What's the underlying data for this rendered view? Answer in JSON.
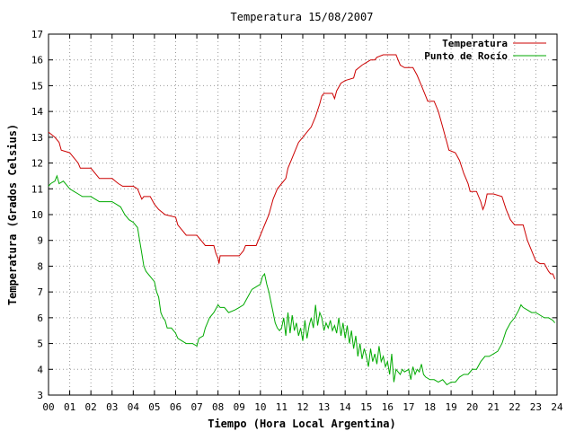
{
  "chart_data": {
    "type": "line",
    "title": "Temperatura 15/08/2007",
    "xlabel": "Tiempo (Hora Local Argentina)",
    "ylabel": "Temperatura (Grados Celsius)",
    "xlim": [
      0,
      24
    ],
    "ylim": [
      3,
      17
    ],
    "x_ticks": [
      "00",
      "01",
      "02",
      "03",
      "04",
      "05",
      "06",
      "07",
      "08",
      "09",
      "10",
      "11",
      "12",
      "13",
      "14",
      "15",
      "16",
      "17",
      "18",
      "19",
      "20",
      "21",
      "22",
      "23",
      "24"
    ],
    "y_ticks": [
      3,
      4,
      5,
      6,
      7,
      8,
      9,
      10,
      11,
      12,
      13,
      14,
      15,
      16,
      17
    ],
    "grid": true,
    "legend_position": "top-right",
    "series": [
      {
        "name": "Temperatura",
        "color": "#cc0000",
        "points": [
          [
            0.0,
            13.2
          ],
          [
            0.3,
            13.0
          ],
          [
            0.5,
            12.8
          ],
          [
            0.6,
            12.5
          ],
          [
            1.0,
            12.4
          ],
          [
            1.2,
            12.2
          ],
          [
            1.4,
            12.0
          ],
          [
            1.5,
            11.8
          ],
          [
            2.0,
            11.8
          ],
          [
            2.2,
            11.6
          ],
          [
            2.4,
            11.4
          ],
          [
            3.0,
            11.4
          ],
          [
            3.3,
            11.2
          ],
          [
            3.5,
            11.1
          ],
          [
            4.0,
            11.1
          ],
          [
            4.2,
            11.0
          ],
          [
            4.4,
            10.6
          ],
          [
            4.5,
            10.7
          ],
          [
            4.8,
            10.7
          ],
          [
            5.0,
            10.4
          ],
          [
            5.2,
            10.2
          ],
          [
            5.5,
            10.0
          ],
          [
            6.0,
            9.9
          ],
          [
            6.1,
            9.6
          ],
          [
            6.3,
            9.4
          ],
          [
            6.5,
            9.2
          ],
          [
            6.8,
            9.2
          ],
          [
            7.0,
            9.2
          ],
          [
            7.2,
            9.0
          ],
          [
            7.4,
            8.8
          ],
          [
            7.8,
            8.8
          ],
          [
            7.9,
            8.5
          ],
          [
            8.0,
            8.3
          ],
          [
            8.05,
            8.1
          ],
          [
            8.1,
            8.4
          ],
          [
            8.5,
            8.4
          ],
          [
            9.0,
            8.4
          ],
          [
            9.2,
            8.6
          ],
          [
            9.3,
            8.8
          ],
          [
            9.8,
            8.8
          ],
          [
            10.0,
            9.2
          ],
          [
            10.2,
            9.6
          ],
          [
            10.4,
            10.0
          ],
          [
            10.6,
            10.6
          ],
          [
            10.8,
            11.0
          ],
          [
            11.0,
            11.2
          ],
          [
            11.2,
            11.4
          ],
          [
            11.3,
            11.8
          ],
          [
            11.4,
            12.0
          ],
          [
            11.6,
            12.4
          ],
          [
            11.8,
            12.8
          ],
          [
            12.0,
            13.0
          ],
          [
            12.2,
            13.2
          ],
          [
            12.4,
            13.4
          ],
          [
            12.6,
            13.8
          ],
          [
            12.8,
            14.3
          ],
          [
            12.9,
            14.6
          ],
          [
            13.0,
            14.7
          ],
          [
            13.4,
            14.7
          ],
          [
            13.5,
            14.5
          ],
          [
            13.6,
            14.8
          ],
          [
            13.8,
            15.1
          ],
          [
            14.0,
            15.2
          ],
          [
            14.4,
            15.3
          ],
          [
            14.5,
            15.6
          ],
          [
            14.8,
            15.8
          ],
          [
            15.0,
            15.9
          ],
          [
            15.2,
            16.0
          ],
          [
            15.4,
            16.0
          ],
          [
            15.5,
            16.1
          ],
          [
            15.8,
            16.2
          ],
          [
            16.0,
            16.2
          ],
          [
            16.4,
            16.2
          ],
          [
            16.5,
            16.0
          ],
          [
            16.6,
            15.8
          ],
          [
            16.8,
            15.7
          ],
          [
            17.2,
            15.7
          ],
          [
            17.4,
            15.4
          ],
          [
            17.6,
            15.0
          ],
          [
            17.8,
            14.6
          ],
          [
            17.9,
            14.4
          ],
          [
            18.2,
            14.4
          ],
          [
            18.4,
            14.0
          ],
          [
            18.6,
            13.4
          ],
          [
            18.8,
            12.8
          ],
          [
            18.9,
            12.5
          ],
          [
            19.2,
            12.4
          ],
          [
            19.4,
            12.1
          ],
          [
            19.6,
            11.6
          ],
          [
            19.8,
            11.2
          ],
          [
            19.9,
            10.9
          ],
          [
            20.2,
            10.9
          ],
          [
            20.4,
            10.5
          ],
          [
            20.5,
            10.2
          ],
          [
            20.6,
            10.4
          ],
          [
            20.7,
            10.8
          ],
          [
            21.0,
            10.8
          ],
          [
            21.4,
            10.7
          ],
          [
            21.6,
            10.2
          ],
          [
            21.8,
            9.8
          ],
          [
            22.0,
            9.6
          ],
          [
            22.4,
            9.6
          ],
          [
            22.6,
            9.0
          ],
          [
            22.8,
            8.6
          ],
          [
            23.0,
            8.2
          ],
          [
            23.2,
            8.1
          ],
          [
            23.4,
            8.1
          ],
          [
            23.6,
            7.8
          ],
          [
            23.7,
            7.7
          ],
          [
            23.8,
            7.7
          ],
          [
            23.9,
            7.5
          ]
        ]
      },
      {
        "name": "Punto de Rocío",
        "color": "#00aa00",
        "points": [
          [
            0.0,
            11.1
          ],
          [
            0.1,
            11.2
          ],
          [
            0.3,
            11.3
          ],
          [
            0.4,
            11.5
          ],
          [
            0.5,
            11.2
          ],
          [
            0.7,
            11.3
          ],
          [
            1.0,
            11.0
          ],
          [
            1.2,
            10.9
          ],
          [
            1.4,
            10.8
          ],
          [
            1.6,
            10.7
          ],
          [
            2.0,
            10.7
          ],
          [
            2.2,
            10.6
          ],
          [
            2.4,
            10.5
          ],
          [
            3.0,
            10.5
          ],
          [
            3.4,
            10.3
          ],
          [
            3.6,
            10.0
          ],
          [
            3.8,
            9.8
          ],
          [
            4.0,
            9.7
          ],
          [
            4.2,
            9.5
          ],
          [
            4.3,
            9.0
          ],
          [
            4.4,
            8.5
          ],
          [
            4.5,
            8.0
          ],
          [
            4.6,
            7.8
          ],
          [
            4.8,
            7.6
          ],
          [
            5.0,
            7.4
          ],
          [
            5.1,
            7.0
          ],
          [
            5.2,
            6.8
          ],
          [
            5.3,
            6.2
          ],
          [
            5.4,
            6.0
          ],
          [
            5.5,
            5.9
          ],
          [
            5.6,
            5.6
          ],
          [
            5.8,
            5.6
          ],
          [
            6.0,
            5.4
          ],
          [
            6.1,
            5.2
          ],
          [
            6.3,
            5.1
          ],
          [
            6.5,
            5.0
          ],
          [
            6.8,
            5.0
          ],
          [
            7.0,
            4.9
          ],
          [
            7.1,
            5.2
          ],
          [
            7.3,
            5.3
          ],
          [
            7.4,
            5.6
          ],
          [
            7.5,
            5.8
          ],
          [
            7.6,
            6.0
          ],
          [
            7.8,
            6.2
          ],
          [
            8.0,
            6.5
          ],
          [
            8.1,
            6.4
          ],
          [
            8.3,
            6.4
          ],
          [
            8.5,
            6.2
          ],
          [
            8.8,
            6.3
          ],
          [
            9.0,
            6.4
          ],
          [
            9.2,
            6.5
          ],
          [
            9.4,
            6.8
          ],
          [
            9.6,
            7.1
          ],
          [
            9.8,
            7.2
          ],
          [
            10.0,
            7.3
          ],
          [
            10.1,
            7.6
          ],
          [
            10.2,
            7.7
          ],
          [
            10.3,
            7.3
          ],
          [
            10.4,
            7.0
          ],
          [
            10.5,
            6.6
          ],
          [
            10.6,
            6.2
          ],
          [
            10.7,
            5.8
          ],
          [
            10.8,
            5.6
          ],
          [
            10.9,
            5.5
          ],
          [
            11.0,
            5.6
          ],
          [
            11.1,
            6.0
          ],
          [
            11.2,
            5.3
          ],
          [
            11.3,
            6.2
          ],
          [
            11.4,
            5.4
          ],
          [
            11.5,
            6.1
          ],
          [
            11.6,
            5.5
          ],
          [
            11.7,
            5.8
          ],
          [
            11.8,
            5.3
          ],
          [
            11.9,
            5.6
          ],
          [
            12.0,
            5.1
          ],
          [
            12.1,
            5.9
          ],
          [
            12.2,
            5.2
          ],
          [
            12.3,
            5.7
          ],
          [
            12.4,
            6.0
          ],
          [
            12.5,
            5.6
          ],
          [
            12.6,
            6.5
          ],
          [
            12.7,
            5.7
          ],
          [
            12.8,
            6.2
          ],
          [
            12.9,
            6.0
          ],
          [
            13.0,
            5.5
          ],
          [
            13.1,
            5.8
          ],
          [
            13.2,
            5.6
          ],
          [
            13.3,
            5.9
          ],
          [
            13.4,
            5.5
          ],
          [
            13.5,
            5.7
          ],
          [
            13.6,
            5.4
          ],
          [
            13.7,
            6.0
          ],
          [
            13.8,
            5.3
          ],
          [
            13.9,
            5.8
          ],
          [
            14.0,
            5.2
          ],
          [
            14.1,
            5.7
          ],
          [
            14.2,
            5.0
          ],
          [
            14.3,
            5.5
          ],
          [
            14.4,
            4.8
          ],
          [
            14.5,
            5.3
          ],
          [
            14.6,
            4.5
          ],
          [
            14.7,
            5.0
          ],
          [
            14.8,
            4.4
          ],
          [
            14.9,
            4.8
          ],
          [
            15.0,
            4.5
          ],
          [
            15.1,
            4.1
          ],
          [
            15.2,
            4.8
          ],
          [
            15.3,
            4.3
          ],
          [
            15.4,
            4.6
          ],
          [
            15.5,
            4.2
          ],
          [
            15.6,
            4.9
          ],
          [
            15.7,
            4.3
          ],
          [
            15.8,
            4.5
          ],
          [
            15.9,
            4.1
          ],
          [
            16.0,
            4.3
          ],
          [
            16.1,
            3.8
          ],
          [
            16.2,
            4.6
          ],
          [
            16.3,
            3.5
          ],
          [
            16.4,
            4.0
          ],
          [
            16.5,
            3.9
          ],
          [
            16.6,
            3.8
          ],
          [
            16.7,
            4.0
          ],
          [
            16.8,
            3.9
          ],
          [
            17.0,
            4.0
          ],
          [
            17.1,
            3.6
          ],
          [
            17.2,
            4.1
          ],
          [
            17.3,
            3.8
          ],
          [
            17.4,
            4.0
          ],
          [
            17.5,
            3.9
          ],
          [
            17.6,
            4.2
          ],
          [
            17.7,
            3.8
          ],
          [
            17.8,
            3.7
          ],
          [
            18.0,
            3.6
          ],
          [
            18.2,
            3.6
          ],
          [
            18.4,
            3.5
          ],
          [
            18.6,
            3.6
          ],
          [
            18.8,
            3.4
          ],
          [
            19.0,
            3.5
          ],
          [
            19.2,
            3.5
          ],
          [
            19.4,
            3.7
          ],
          [
            19.6,
            3.8
          ],
          [
            19.8,
            3.8
          ],
          [
            20.0,
            4.0
          ],
          [
            20.2,
            4.0
          ],
          [
            20.4,
            4.3
          ],
          [
            20.6,
            4.5
          ],
          [
            20.8,
            4.5
          ],
          [
            21.0,
            4.6
          ],
          [
            21.2,
            4.7
          ],
          [
            21.4,
            5.0
          ],
          [
            21.6,
            5.5
          ],
          [
            21.8,
            5.8
          ],
          [
            22.0,
            6.0
          ],
          [
            22.2,
            6.3
          ],
          [
            22.3,
            6.5
          ],
          [
            22.4,
            6.4
          ],
          [
            22.6,
            6.3
          ],
          [
            22.8,
            6.2
          ],
          [
            23.0,
            6.2
          ],
          [
            23.2,
            6.1
          ],
          [
            23.4,
            6.0
          ],
          [
            23.6,
            6.0
          ],
          [
            23.8,
            5.9
          ],
          [
            23.9,
            5.8
          ]
        ]
      }
    ]
  }
}
